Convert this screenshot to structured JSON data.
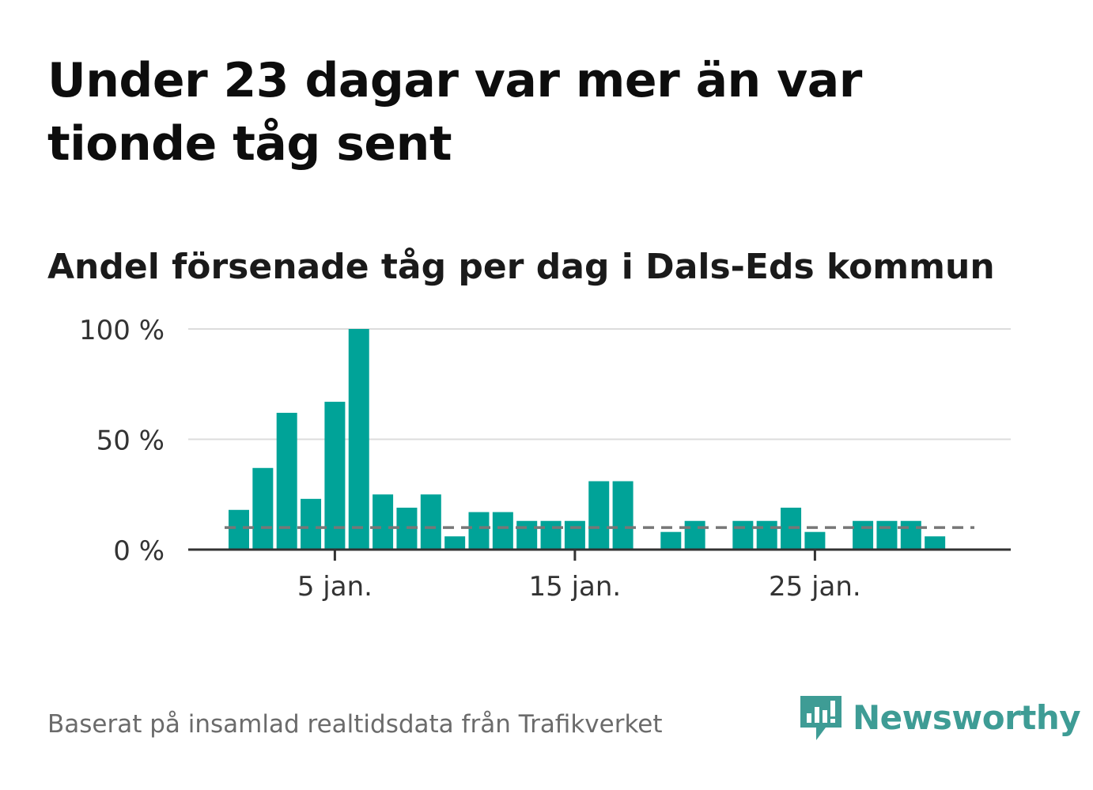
{
  "title": "Under 23 dagar var mer än var tionde tåg sent",
  "subtitle": "Andel försenade tåg per dag i Dals-Eds kommun",
  "source": "Baserat på insamlad realtidsdata från Trafikverket",
  "brand": {
    "name": "Newsworthy",
    "color": "#3e9c95",
    "icon": "newsworthy-logo-icon"
  },
  "chart_data": {
    "type": "bar",
    "bar_color": "#00a398",
    "reference_line": {
      "value": 10,
      "style": "dashed",
      "color": "#777777"
    },
    "x": [
      1,
      2,
      3,
      4,
      5,
      6,
      7,
      8,
      9,
      10,
      11,
      12,
      13,
      14,
      15,
      16,
      17,
      18,
      19,
      20,
      21,
      22,
      23,
      24,
      25,
      26,
      27,
      28,
      29,
      30,
      31
    ],
    "values": [
      18,
      37,
      62,
      23,
      67,
      100,
      25,
      19,
      25,
      6,
      17,
      17,
      13,
      13,
      13,
      31,
      31,
      0,
      8,
      13,
      0,
      13,
      13,
      19,
      8,
      0,
      13,
      13,
      13,
      6,
      0
    ],
    "xticks": [
      {
        "x": 5,
        "label": "5 jan."
      },
      {
        "x": 15,
        "label": "15 jan."
      },
      {
        "x": 25,
        "label": "25 jan."
      }
    ],
    "yticks": [
      {
        "value": 0,
        "label": "0 %"
      },
      {
        "value": 50,
        "label": "50 %"
      },
      {
        "value": 100,
        "label": "100 %"
      }
    ],
    "ylim": [
      0,
      100
    ],
    "grid": true
  }
}
